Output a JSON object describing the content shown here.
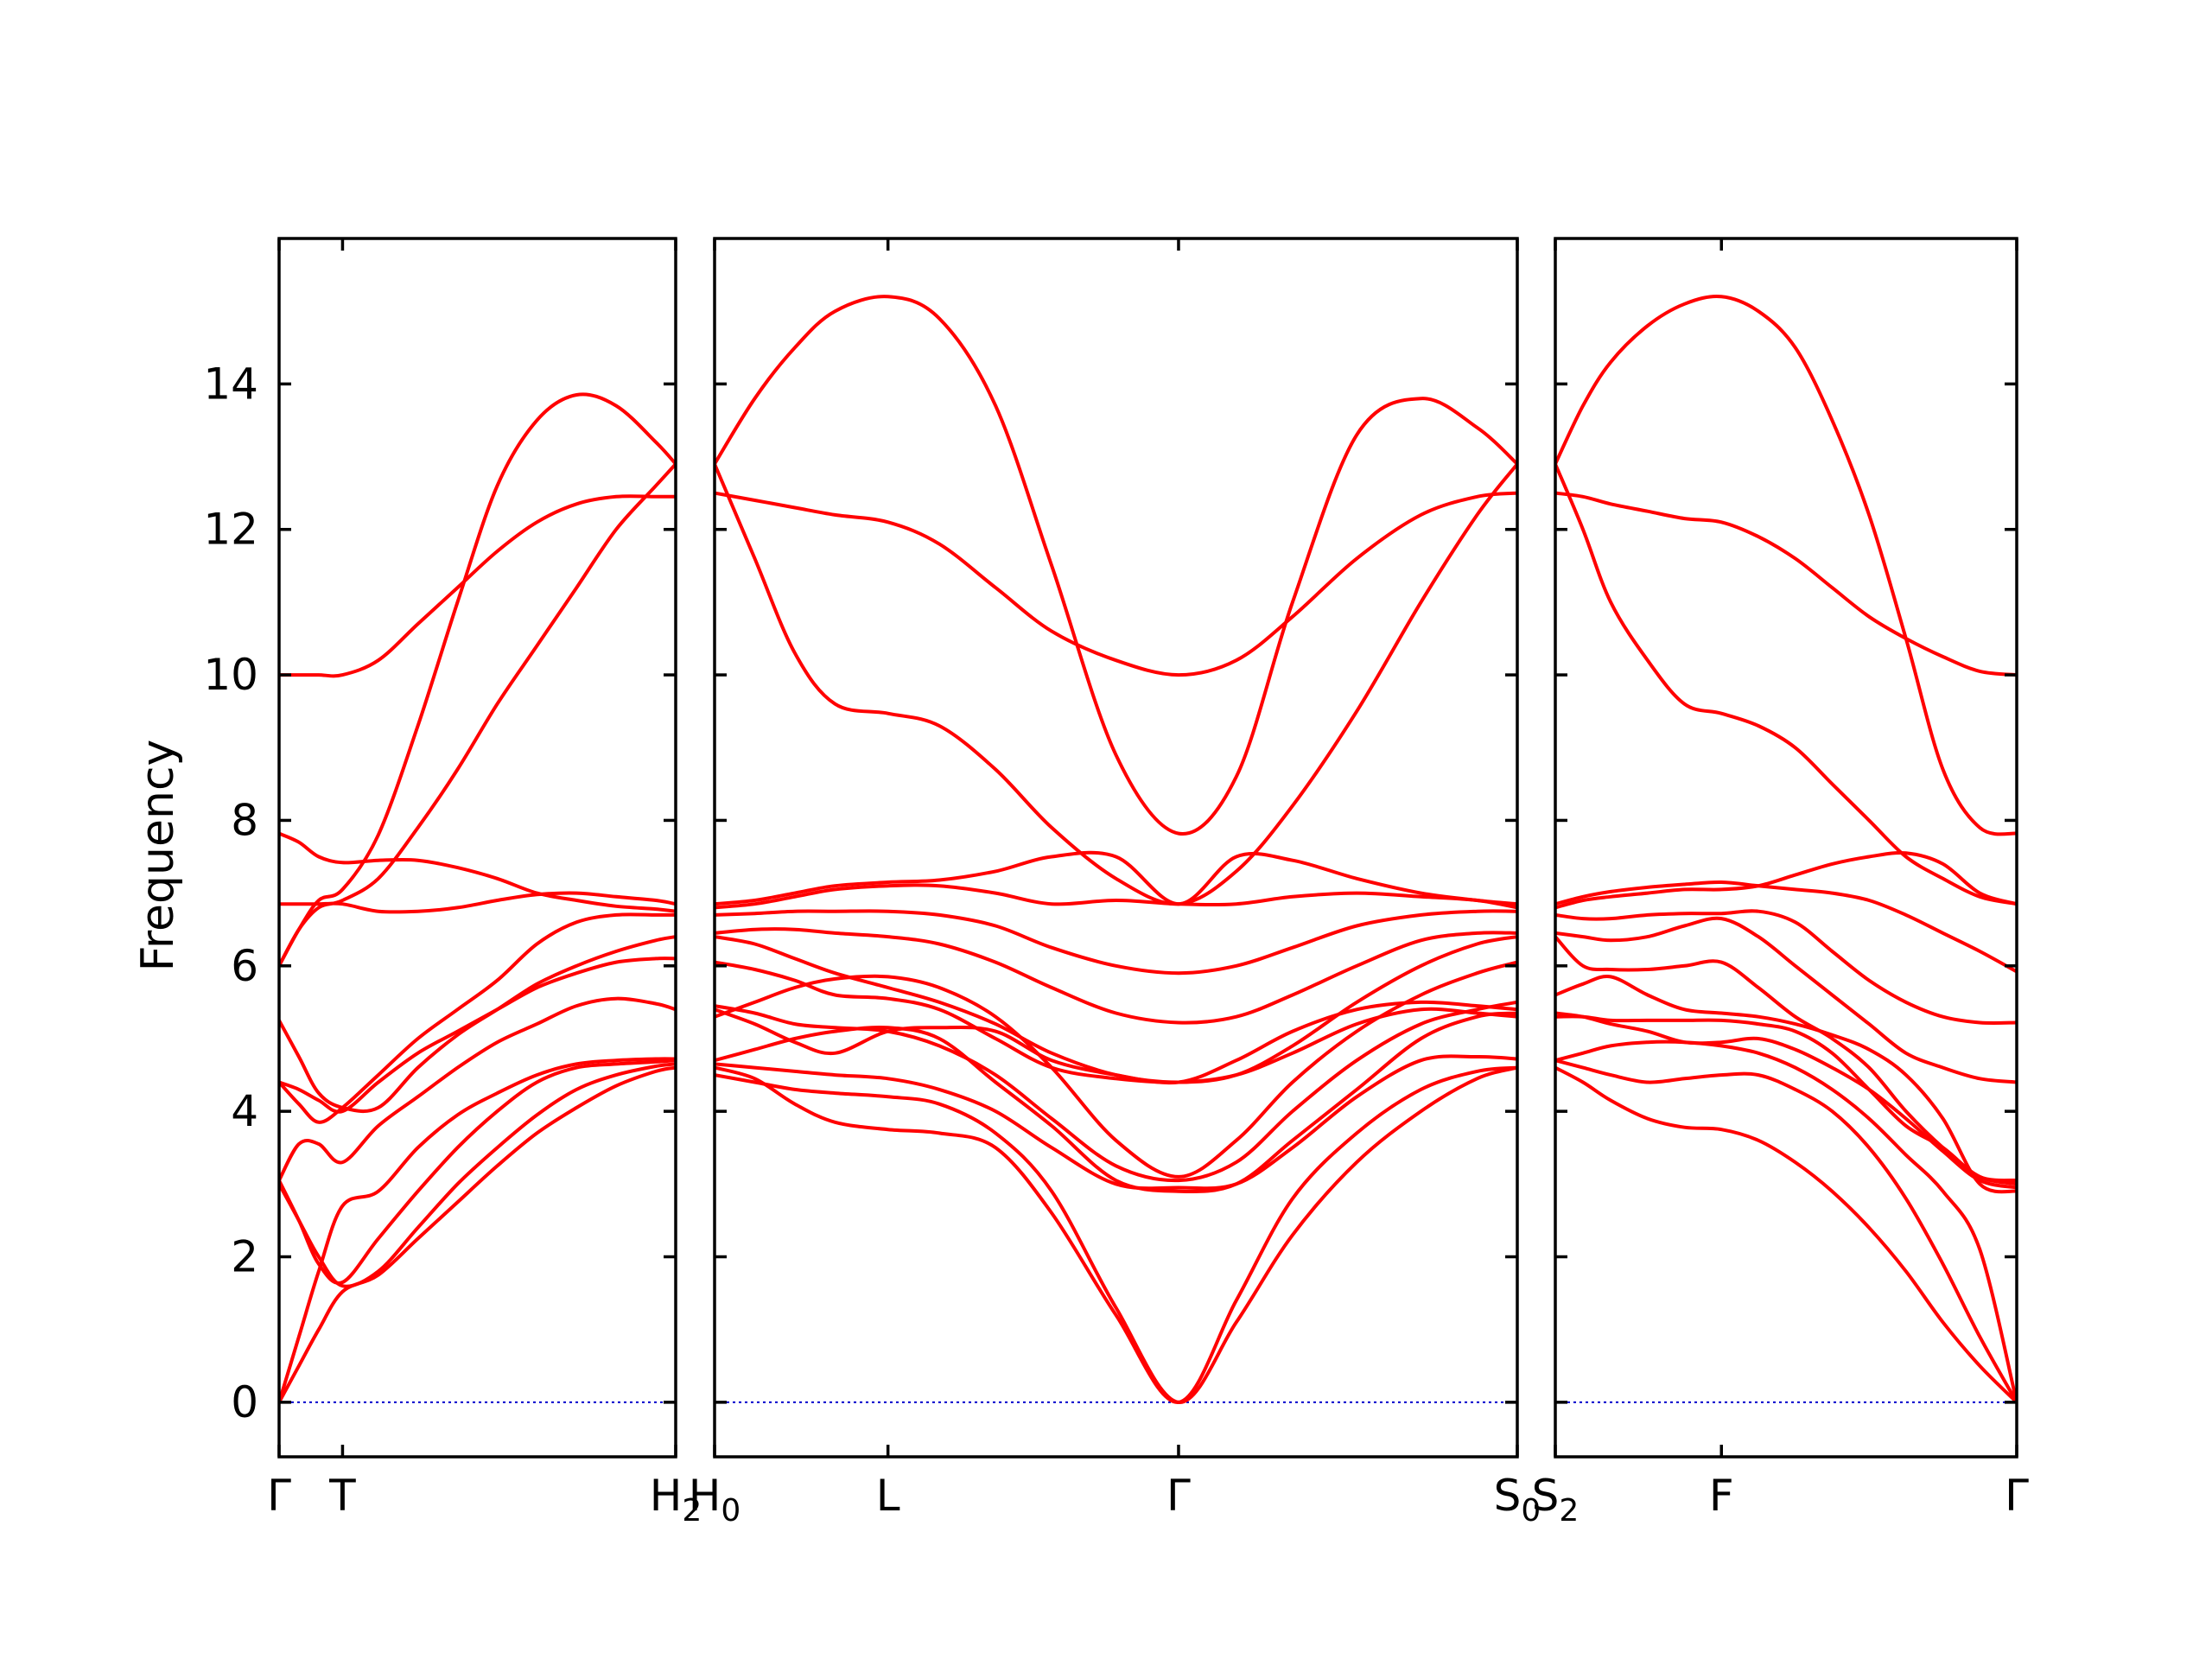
{
  "chart_data": {
    "type": "line",
    "ylabel": "Frequency",
    "ylim": [
      -0.75,
      16.0
    ],
    "yticks": [
      0,
      2,
      4,
      6,
      8,
      10,
      12,
      14
    ],
    "band_color": "#ff0000",
    "zero_line_color": "#0000cc",
    "panels": [
      {
        "id": "p1",
        "xlim": [
          0,
          1
        ],
        "ticks": [
          {
            "pos": 0.0,
            "label": "Γ",
            "sub": ""
          },
          {
            "pos": 0.16,
            "label": "T",
            "sub": ""
          },
          {
            "pos": 1.0,
            "label": "H",
            "sub": "2"
          }
        ],
        "x": [
          0,
          0.05,
          0.1,
          0.16,
          0.25,
          0.35,
          0.45,
          0.55,
          0.65,
          0.75,
          0.85,
          0.95,
          1.0
        ],
        "series": [
          {
            "values": [
              0,
              0.5,
              1.0,
              1.52,
              1.75,
              2.25,
              2.75,
              3.25,
              3.7,
              4.05,
              4.35,
              4.55,
              4.6
            ]
          },
          {
            "values": [
              0,
              0.9,
              1.8,
              2.7,
              2.9,
              3.5,
              3.95,
              4.25,
              4.5,
              4.65,
              4.7,
              4.72,
              4.72
            ]
          },
          {
            "values": [
              3.0,
              2.5,
              2.0,
              1.6,
              1.8,
              2.4,
              3.0,
              3.5,
              3.95,
              4.3,
              4.5,
              4.62,
              4.65
            ]
          },
          {
            "values": [
              3.05,
              3.55,
              3.55,
              3.3,
              3.8,
              4.2,
              4.6,
              4.95,
              5.2,
              5.45,
              5.55,
              5.48,
              5.4
            ]
          },
          {
            "values": [
              4.4,
              4.3,
              4.15,
              4.0,
              4.4,
              4.8,
              5.1,
              5.4,
              5.7,
              5.9,
              6.05,
              6.1,
              6.1
            ]
          },
          {
            "values": [
              5.25,
              4.75,
              4.25,
              4.05,
              4.05,
              4.6,
              5.05,
              5.4,
              5.75,
              6.0,
              6.2,
              6.35,
              6.4
            ]
          },
          {
            "values": [
              6.85,
              6.85,
              6.85,
              6.85,
              6.75,
              6.75,
              6.8,
              6.9,
              6.98,
              7.0,
              6.95,
              6.9,
              6.85
            ]
          },
          {
            "values": [
              7.82,
              7.7,
              7.5,
              7.42,
              7.45,
              7.45,
              7.35,
              7.2,
              7.0,
              6.9,
              6.82,
              6.78,
              6.75
            ]
          },
          {
            "values": [
              6.0,
              6.5,
              6.9,
              7.05,
              7.8,
              9.3,
              11.0,
              12.6,
              13.5,
              13.85,
              13.7,
              13.2,
              12.9
            ]
          },
          {
            "values": [
              6.0,
              6.5,
              6.8,
              6.9,
              7.2,
              7.9,
              8.7,
              9.6,
              10.4,
              11.2,
              12.0,
              12.6,
              12.9
            ]
          },
          {
            "values": [
              10.0,
              10.0,
              10.0,
              10.0,
              10.2,
              10.7,
              11.2,
              11.7,
              12.1,
              12.35,
              12.45,
              12.45,
              12.45
            ]
          },
          {
            "values": [
              4.4,
              4.1,
              3.85,
              4.05,
              4.5,
              5.0,
              5.4,
              5.8,
              6.3,
              6.6,
              6.7,
              6.7,
              6.7
            ]
          },
          {
            "values": [
              3.05,
              2.5,
              1.9,
              1.65,
              2.25,
              2.9,
              3.5,
              4.0,
              4.4,
              4.6,
              4.65,
              4.68,
              4.7
            ]
          }
        ]
      },
      {
        "id": "p2",
        "xlim": [
          0,
          1
        ],
        "ticks": [
          {
            "pos": 0.0,
            "label": "H",
            "sub": "0"
          },
          {
            "pos": 0.216,
            "label": "L",
            "sub": ""
          },
          {
            "pos": 0.578,
            "label": "Γ",
            "sub": ""
          },
          {
            "pos": 1.0,
            "label": "S",
            "sub": "0"
          }
        ],
        "x": [
          0,
          0.05,
          0.1,
          0.15,
          0.216,
          0.28,
          0.35,
          0.42,
          0.5,
          0.578,
          0.65,
          0.72,
          0.8,
          0.88,
          0.95,
          1.0
        ],
        "series": [
          {
            "values": [
              12.9,
              13.8,
              14.5,
              15.0,
              15.2,
              14.9,
              13.7,
              11.5,
              8.9,
              7.82,
              8.6,
              11.0,
              13.3,
              13.8,
              13.4,
              12.9
            ]
          },
          {
            "values": [
              12.9,
              11.6,
              10.3,
              9.6,
              9.47,
              9.3,
              8.7,
              7.9,
              7.2,
              6.85,
              7.3,
              8.2,
              9.5,
              11.0,
              12.2,
              12.9
            ]
          },
          {
            "values": [
              12.5,
              12.4,
              12.3,
              12.2,
              12.1,
              11.8,
              11.2,
              10.6,
              10.2,
              10.0,
              10.2,
              10.8,
              11.6,
              12.2,
              12.45,
              12.5
            ]
          },
          {
            "values": [
              6.85,
              6.9,
              7.0,
              7.1,
              7.15,
              7.18,
              7.3,
              7.5,
              7.5,
              6.85,
              7.5,
              7.45,
              7.2,
              7.0,
              6.9,
              6.85
            ]
          },
          {
            "values": [
              6.8,
              6.85,
              6.95,
              7.05,
              7.1,
              7.1,
              7.0,
              6.85,
              6.9,
              6.85,
              6.85,
              6.95,
              7.0,
              6.95,
              6.9,
              6.8
            ]
          },
          {
            "values": [
              6.7,
              6.72,
              6.75,
              6.75,
              6.75,
              6.7,
              6.55,
              6.25,
              6.0,
              5.9,
              6.0,
              6.25,
              6.55,
              6.7,
              6.75,
              6.75
            ]
          },
          {
            "values": [
              6.45,
              6.5,
              6.5,
              6.45,
              6.4,
              6.3,
              6.05,
              5.7,
              5.35,
              5.22,
              5.3,
              5.6,
              6.0,
              6.35,
              6.45,
              6.45
            ]
          },
          {
            "values": [
              6.4,
              6.3,
              6.1,
              5.9,
              5.7,
              5.5,
              5.2,
              4.8,
              4.5,
              4.4,
              4.5,
              4.9,
              5.5,
              6.0,
              6.3,
              6.4
            ]
          },
          {
            "values": [
              6.05,
              5.95,
              5.8,
              5.6,
              5.55,
              5.4,
              5.0,
              4.6,
              4.45,
              4.4,
              4.5,
              4.8,
              5.2,
              5.4,
              5.35,
              5.3
            ]
          },
          {
            "values": [
              5.3,
              5.5,
              5.7,
              5.82,
              5.85,
              5.7,
              5.3,
              4.6,
              3.6,
              3.1,
              3.6,
              4.4,
              5.1,
              5.6,
              5.9,
              6.05
            ]
          },
          {
            "values": [
              5.45,
              5.35,
              5.2,
              5.15,
              5.1,
              4.9,
              4.5,
              3.9,
              3.25,
              3.05,
              3.3,
              4.0,
              4.7,
              5.2,
              5.4,
              5.5
            ]
          },
          {
            "values": [
              4.7,
              4.85,
              5.0,
              5.1,
              5.15,
              5.0,
              4.4,
              3.8,
              3.05,
              2.9,
              3.0,
              3.6,
              4.3,
              5.0,
              5.3,
              5.35
            ]
          },
          {
            "values": [
              4.65,
              4.6,
              4.55,
              4.5,
              4.45,
              4.3,
              4.0,
              3.5,
              3.0,
              2.95,
              3.0,
              3.5,
              4.2,
              4.7,
              4.75,
              4.72
            ]
          },
          {
            "values": [
              4.6,
              4.45,
              4.1,
              3.85,
              3.75,
              3.7,
              3.5,
              2.6,
              1.2,
              0.0,
              1.4,
              2.8,
              3.7,
              4.3,
              4.55,
              4.6
            ]
          },
          {
            "values": [
              4.5,
              4.4,
              4.3,
              4.25,
              4.2,
              4.1,
              3.7,
              2.9,
              1.3,
              0.0,
              1.1,
              2.3,
              3.3,
              4.0,
              4.45,
              4.6
            ]
          },
          {
            "values": [
              5.4,
              5.2,
              4.95,
              4.8,
              5.1,
              5.15,
              5.1,
              4.7,
              4.5,
              4.4,
              4.7,
              5.1,
              5.4,
              5.5,
              5.45,
              5.4
            ]
          }
        ]
      },
      {
        "id": "p3",
        "xlim": [
          0,
          1
        ],
        "ticks": [
          {
            "pos": 0.0,
            "label": "S",
            "sub": "2"
          },
          {
            "pos": 0.36,
            "label": "F",
            "sub": ""
          },
          {
            "pos": 1.0,
            "label": "Γ",
            "sub": ""
          }
        ],
        "x": [
          0,
          0.06,
          0.12,
          0.2,
          0.28,
          0.36,
          0.44,
          0.52,
          0.6,
          0.68,
          0.76,
          0.84,
          0.92,
          1.0
        ],
        "series": [
          {
            "values": [
              12.9,
              13.7,
              14.3,
              14.8,
              15.1,
              15.2,
              15.0,
              14.5,
              13.5,
              12.2,
              10.5,
              8.7,
              7.9,
              7.82
            ]
          },
          {
            "values": [
              12.9,
              12.0,
              11.0,
              10.2,
              9.6,
              9.47,
              9.3,
              9.0,
              8.5,
              8.0,
              7.5,
              7.2,
              6.95,
              6.85
            ]
          },
          {
            "values": [
              12.5,
              12.45,
              12.35,
              12.25,
              12.15,
              12.1,
              11.9,
              11.6,
              11.2,
              10.8,
              10.5,
              10.25,
              10.05,
              10.0
            ]
          },
          {
            "values": [
              6.85,
              6.95,
              7.02,
              7.08,
              7.12,
              7.15,
              7.1,
              7.05,
              7.0,
              6.9,
              6.7,
              6.45,
              6.2,
              5.92
            ]
          },
          {
            "values": [
              6.8,
              6.9,
              6.95,
              7.0,
              7.05,
              7.05,
              7.1,
              7.25,
              7.4,
              7.5,
              7.55,
              7.4,
              7.0,
              6.85
            ]
          },
          {
            "values": [
              6.7,
              6.65,
              6.65,
              6.7,
              6.72,
              6.72,
              6.75,
              6.6,
              6.2,
              5.8,
              5.5,
              5.3,
              5.22,
              5.22
            ]
          },
          {
            "values": [
              6.45,
              6.4,
              6.35,
              6.4,
              6.55,
              6.65,
              6.4,
              6.0,
              5.6,
              5.2,
              4.8,
              4.6,
              4.45,
              4.4
            ]
          },
          {
            "values": [
              6.4,
              6.0,
              5.95,
              5.95,
              6.0,
              6.05,
              5.7,
              5.3,
              5.0,
              4.6,
              4.0,
              3.5,
              3.1,
              3.0
            ]
          },
          {
            "values": [
              5.6,
              5.75,
              5.85,
              5.6,
              5.4,
              5.35,
              5.3,
              5.2,
              5.05,
              4.85,
              4.5,
              3.9,
              3.0,
              2.9
            ]
          },
          {
            "values": [
              5.3,
              5.3,
              5.25,
              5.25,
              5.25,
              5.25,
              5.2,
              5.1,
              4.8,
              4.3,
              3.8,
              3.5,
              3.1,
              3.05
            ]
          },
          {
            "values": [
              5.35,
              5.3,
              5.2,
              5.1,
              4.95,
              4.95,
              5.0,
              4.85,
              4.6,
              4.3,
              3.9,
              3.45,
              3.05,
              2.95
            ]
          },
          {
            "values": [
              4.7,
              4.8,
              4.9,
              4.95,
              4.95,
              4.9,
              4.8,
              4.6,
              4.3,
              3.9,
              3.4,
              2.9,
              2.1,
              0.0
            ]
          },
          {
            "values": [
              4.7,
              4.6,
              4.5,
              4.4,
              4.45,
              4.5,
              4.5,
              4.3,
              4.0,
              3.5,
              2.8,
              1.9,
              0.9,
              0.0
            ]
          },
          {
            "values": [
              4.6,
              4.4,
              4.15,
              3.9,
              3.78,
              3.75,
              3.6,
              3.3,
              2.9,
              2.4,
              1.8,
              1.1,
              0.5,
              0.0
            ]
          }
        ]
      }
    ]
  }
}
